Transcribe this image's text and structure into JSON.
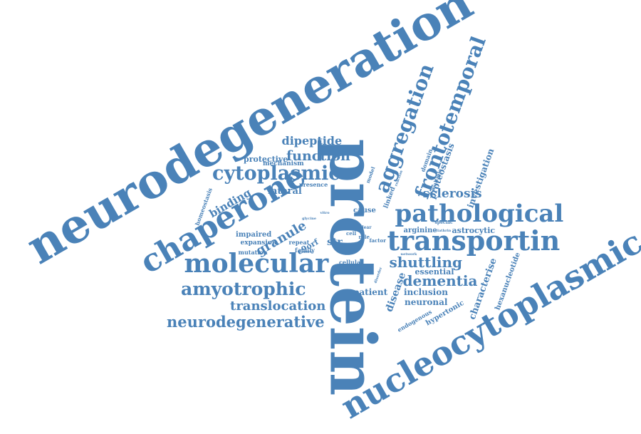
{
  "palette": {
    "word_color": "#4a82b8",
    "background": "#ffffff"
  },
  "words": [
    {
      "text": "neurodegeneration",
      "rot": -30
    },
    {
      "text": "protein",
      "rot": 90
    },
    {
      "text": "nucleocytoplasmic",
      "rot": -30
    },
    {
      "text": "chaperone",
      "rot": -30
    },
    {
      "text": "transportin",
      "rot": 0
    },
    {
      "text": "pathological",
      "rot": 0
    },
    {
      "text": "molecular",
      "rot": 0
    },
    {
      "text": "frontotemporal",
      "rot": -70
    },
    {
      "text": "aggregation",
      "rot": -70
    },
    {
      "text": "cytoplasmic",
      "rot": 0
    },
    {
      "text": "amyotrophic",
      "rot": 0
    },
    {
      "text": "neurodegenerative",
      "rot": 0
    },
    {
      "text": "translocation",
      "rot": 0
    },
    {
      "text": "dementia",
      "rot": 0
    },
    {
      "text": "shuttling",
      "rot": 0
    },
    {
      "text": "granule",
      "rot": -30
    },
    {
      "text": "function",
      "rot": 0
    },
    {
      "text": "dipeptide",
      "rot": 0
    },
    {
      "text": "sclerosis",
      "rot": 0
    },
    {
      "text": "binding",
      "rot": -30
    },
    {
      "text": "lateral",
      "rot": 0
    },
    {
      "text": "disease",
      "rot": -70
    },
    {
      "text": "characterise",
      "rot": -70
    },
    {
      "text": "investigation",
      "rot": -70
    },
    {
      "text": "proteostasis",
      "rot": -70
    },
    {
      "text": "hexanucleotide",
      "rot": -70
    },
    {
      "text": "hypertonic",
      "rot": -30
    },
    {
      "text": "inclusion",
      "rot": 0
    },
    {
      "text": "neuronal",
      "rot": 0
    },
    {
      "text": "patient",
      "rot": 0
    },
    {
      "text": "astrocytic",
      "rot": 0
    },
    {
      "text": "essential",
      "rot": 0
    },
    {
      "text": "arginine",
      "rot": 0
    },
    {
      "text": "cellular",
      "rot": 0
    },
    {
      "text": "mortem",
      "rot": 0
    },
    {
      "text": "impaired",
      "rot": 0
    },
    {
      "text": "expansion",
      "rot": 0
    },
    {
      "text": "mutation",
      "rot": 0
    },
    {
      "text": "protective",
      "rot": 0
    },
    {
      "text": "mechanism",
      "rot": 0
    },
    {
      "text": "presence",
      "rot": 0
    },
    {
      "text": "homeostasis",
      "rot": -70
    },
    {
      "text": "cause",
      "rot": 0
    },
    {
      "text": "linked",
      "rot": -70
    },
    {
      "text": "repeat",
      "rot": 0
    },
    {
      "text": "family",
      "rot": 0
    },
    {
      "text": "role",
      "rot": 0
    },
    {
      "text": "factor",
      "rot": 0
    },
    {
      "text": "control",
      "rot": 0
    },
    {
      "text": "str",
      "rot": 0
    },
    {
      "text": "c9orf",
      "rot": -30
    },
    {
      "text": "model",
      "rot": -70
    },
    {
      "text": "domain",
      "rot": -70
    },
    {
      "text": "multiple",
      "rot": -70
    },
    {
      "text": "specific",
      "rot": 0
    },
    {
      "text": "clathrin",
      "rot": 0
    },
    {
      "text": "endogenous",
      "rot": -30
    },
    {
      "text": "nuclear",
      "rot": 0
    },
    {
      "text": "vitro",
      "rot": 0
    },
    {
      "text": "glycine",
      "rot": 0
    },
    {
      "text": "network",
      "rot": 0
    },
    {
      "text": "disorder",
      "rot": -70
    },
    {
      "text": "cell",
      "rot": 0
    },
    {
      "text": "reaction",
      "rot": -70
    }
  ]
}
